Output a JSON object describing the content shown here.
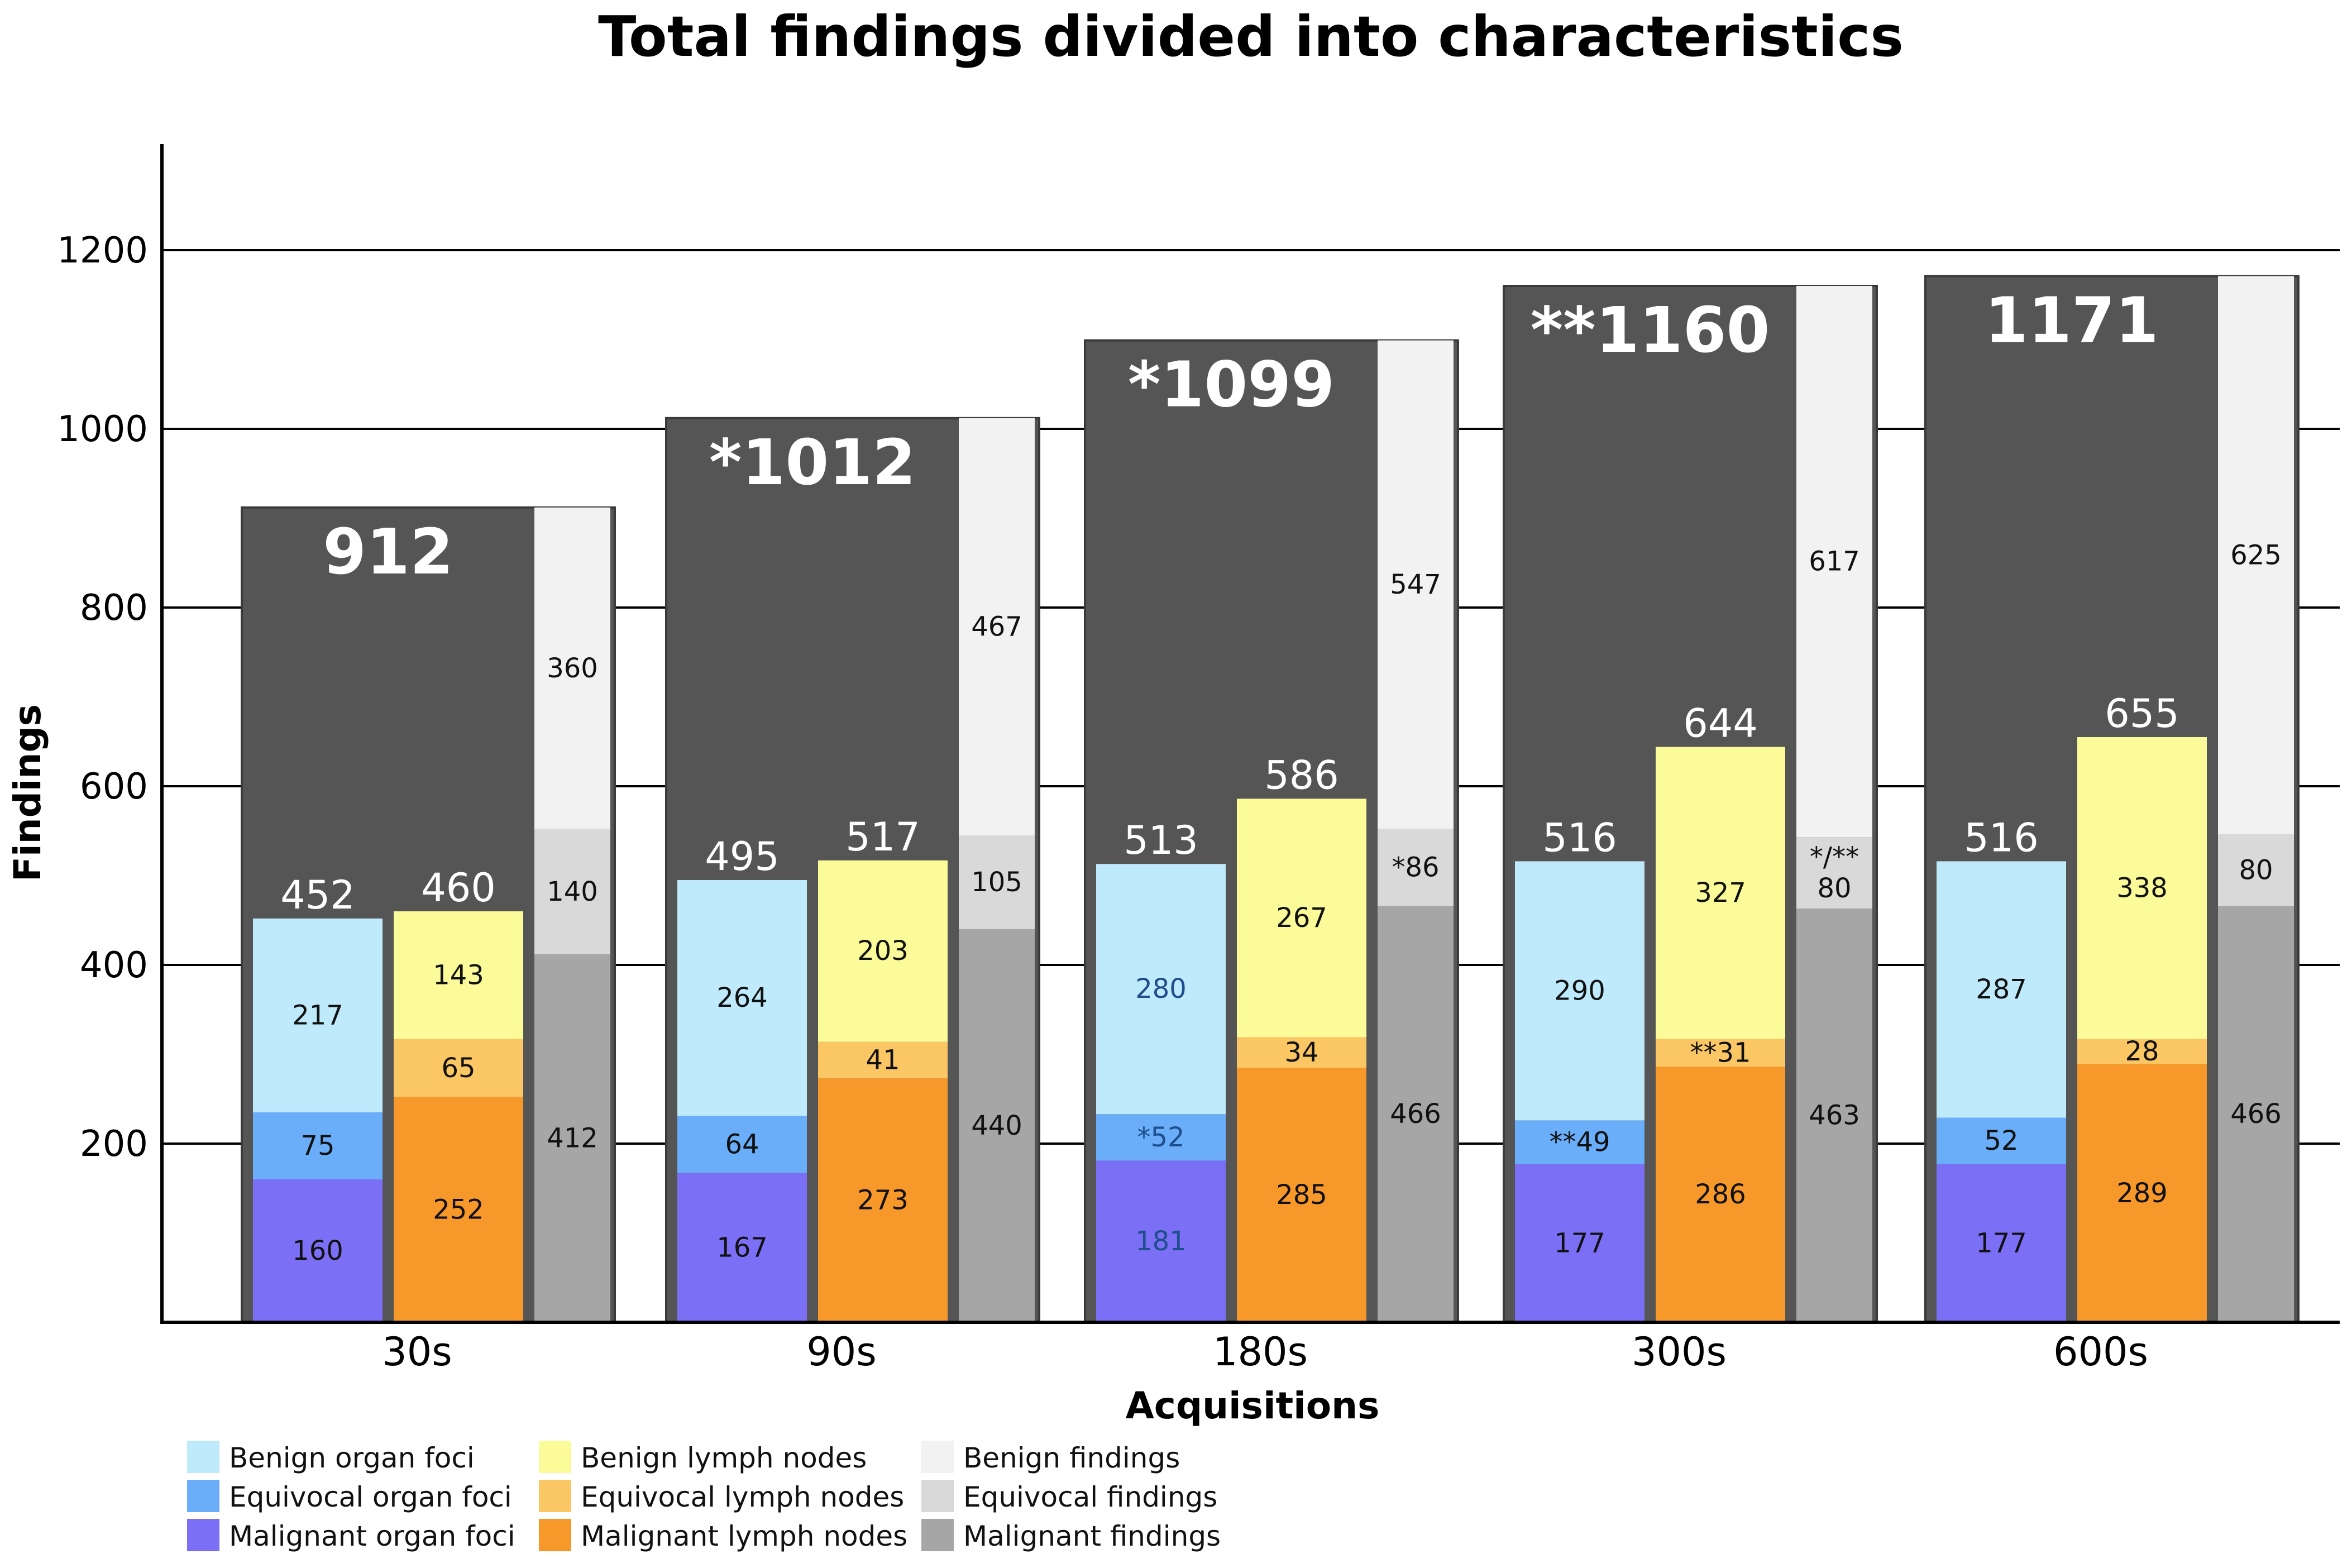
{
  "chart_data": {
    "type": "bar",
    "subtype": "grouped stacked bar",
    "title": "Total findings divided into characteristics",
    "xlabel": "Acquisitions",
    "ylabel": "Findings",
    "ylim": [
      0,
      1300
    ],
    "yticks": [
      "200",
      "400",
      "600",
      "800",
      "1000",
      "1200"
    ],
    "categories": [
      "30s",
      "90s",
      "180s",
      "300s",
      "600s"
    ],
    "totals": [
      {
        "value": 912,
        "label": "912"
      },
      {
        "value": 1012,
        "label": "*1012"
      },
      {
        "value": 1099,
        "label": "*1099"
      },
      {
        "value": 1160,
        "label": "**1160"
      },
      {
        "value": 1171,
        "label": "1171"
      }
    ],
    "stacks": [
      {
        "name": "Organ foci",
        "totals": [
          "452",
          "495",
          "513",
          "516",
          "516"
        ],
        "series": [
          {
            "name": "Malignant organ foci",
            "color": "#7b6ff6",
            "values": [
              160,
              167,
              181,
              177,
              177
            ],
            "labels": [
              "160",
              "167",
              "181",
              "177",
              "177"
            ]
          },
          {
            "name": "Equivocal organ foci",
            "color": "#6aaef9",
            "values": [
              75,
              64,
              52,
              49,
              52
            ],
            "labels": [
              "75",
              "64",
              "*52",
              "**49",
              "52"
            ]
          },
          {
            "name": "Benign organ foci",
            "color": "#bfeafb",
            "values": [
              217,
              264,
              280,
              290,
              287
            ],
            "labels": [
              "217",
              "264",
              "280",
              "290",
              "287"
            ]
          }
        ]
      },
      {
        "name": "Lymph nodes",
        "totals": [
          "460",
          "517",
          "586",
          "644",
          "655"
        ],
        "series": [
          {
            "name": "Malignant lymph nodes",
            "color": "#f7982a",
            "values": [
              252,
              273,
              285,
              286,
              289
            ],
            "labels": [
              "252",
              "273",
              "285",
              "286",
              "289"
            ]
          },
          {
            "name": "Equivocal lymph nodes",
            "color": "#fbc664",
            "values": [
              65,
              41,
              34,
              31,
              28
            ],
            "labels": [
              "65",
              "41",
              "34",
              "**31",
              "28"
            ]
          },
          {
            "name": "Benign lymph nodes",
            "color": "#fbfb99",
            "values": [
              143,
              203,
              267,
              327,
              338
            ],
            "labels": [
              "143",
              "203",
              "267",
              "327",
              "338"
            ]
          }
        ]
      },
      {
        "name": "Findings",
        "series": [
          {
            "name": "Malignant findings",
            "color": "#a6a6a6",
            "values": [
              412,
              440,
              466,
              463,
              466
            ],
            "labels": [
              "412",
              "440",
              "466",
              "463",
              "466"
            ]
          },
          {
            "name": "Equivocal findings",
            "color": "#d9d9d9",
            "values": [
              140,
              105,
              86,
              80,
              80
            ],
            "labels": [
              "140",
              "105",
              "*86",
              "*/**\n80",
              "80"
            ]
          },
          {
            "name": "Benign findings",
            "color": "#f2f2f2",
            "values": [
              360,
              467,
              547,
              617,
              625
            ],
            "labels": [
              "360",
              "467",
              "547",
              "617",
              "625"
            ]
          }
        ]
      }
    ],
    "legend": [
      [
        "Benign organ foci",
        "Equivocal organ foci",
        "Malignant organ foci"
      ],
      [
        "Benign lymph nodes",
        "Equivocal lymph nodes",
        "Malignant lymph nodes"
      ],
      [
        "Benign findings",
        "Equivocal findings",
        "Malignant findings"
      ]
    ],
    "legend_colors": [
      [
        "#bfeafb",
        "#6aaef9",
        "#7b6ff6"
      ],
      [
        "#fbfb99",
        "#fbc664",
        "#f7982a"
      ],
      [
        "#f2f2f2",
        "#d9d9d9",
        "#a6a6a6"
      ]
    ],
    "legend_position": "bottom-left",
    "grid": true,
    "background_color": "#555555"
  }
}
